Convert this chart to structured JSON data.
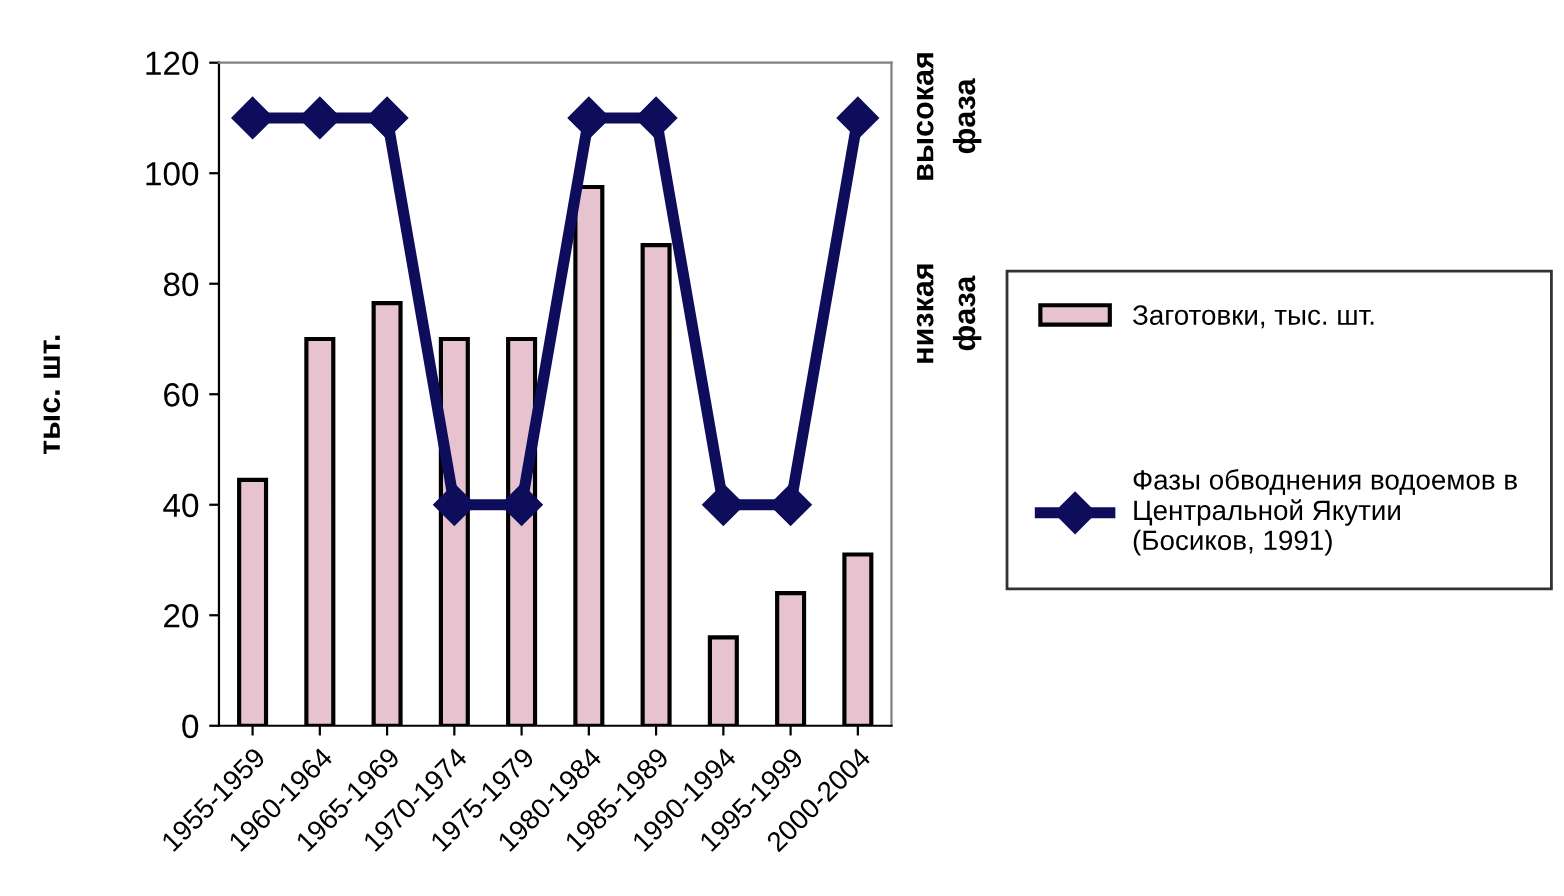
{
  "chart_data": {
    "type": "bar",
    "categories": [
      "1955-1959",
      "1960-1964",
      "1965-1969",
      "1970-1974",
      "1975-1979",
      "1980-1984",
      "1985-1989",
      "1990-1994",
      "1995-1999",
      "2000-2004"
    ],
    "series": [
      {
        "name": "Заготовки, тыс. шт.",
        "color": "#e6c3cf",
        "values": [
          44.5,
          70,
          76.5,
          70,
          70,
          97.5,
          87,
          16,
          24,
          31
        ]
      },
      {
        "name": "Фазы обводнения водоемов в\nЦентральной Якутии\n(Босиков, 1991)",
        "type": "line",
        "color": "#0d0d5c",
        "marker": "diamond",
        "line_style": "solid",
        "values": [
          110,
          110,
          110,
          40,
          40,
          110,
          110,
          40,
          40,
          110
        ]
      }
    ],
    "ylabel": "тыс. шт.",
    "ylim": [
      0,
      120
    ],
    "yticks": [
      0,
      20,
      40,
      60,
      80,
      100,
      120
    ],
    "annotations": [
      "высокая\nфаза",
      "низкая\nфаза"
    ],
    "grid": false,
    "legend": "right"
  }
}
